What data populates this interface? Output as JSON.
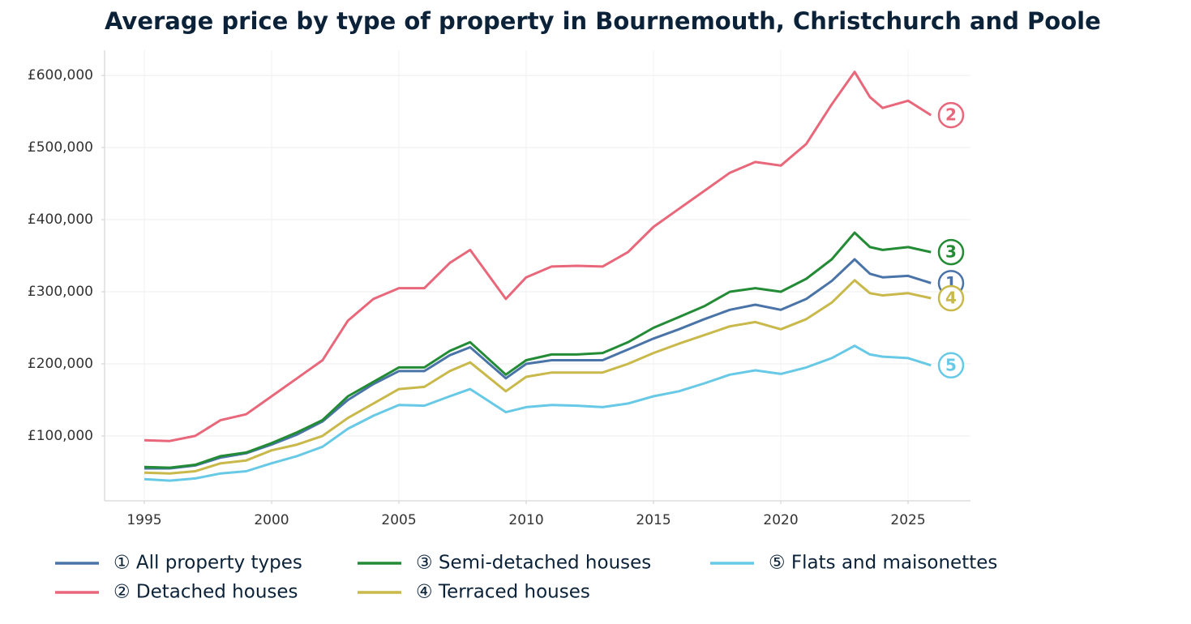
{
  "chart_data": {
    "type": "line",
    "title": "Average price by type of property in Bournemouth, Christchurch and Poole",
    "x": [
      1995,
      1996,
      1997,
      1998,
      1999,
      2000,
      2001,
      2002,
      2003,
      2004,
      2005,
      2006,
      2007,
      2007.8,
      2009.2,
      2010,
      2011,
      2012,
      2013,
      2014,
      2015,
      2016,
      2017,
      2018,
      2019,
      2020,
      2021,
      2022,
      2022.9,
      2023.5,
      2024,
      2025,
      2025.9
    ],
    "series": [
      {
        "name": "① All property types",
        "label": "1",
        "color": "#4a74a8",
        "values": [
          55000,
          55000,
          59000,
          70000,
          76000,
          88000,
          102000,
          120000,
          150000,
          172000,
          190000,
          190000,
          212000,
          223000,
          180000,
          200000,
          205000,
          205000,
          205000,
          220000,
          235000,
          248000,
          262000,
          275000,
          282000,
          275000,
          290000,
          315000,
          345000,
          325000,
          320000,
          322000,
          312000
        ]
      },
      {
        "name": "② Detached houses",
        "label": "2",
        "color": "#e8677a",
        "values": [
          94000,
          93000,
          100000,
          122000,
          130000,
          155000,
          180000,
          205000,
          260000,
          290000,
          305000,
          305000,
          340000,
          358000,
          290000,
          320000,
          335000,
          336000,
          335000,
          355000,
          390000,
          415000,
          440000,
          465000,
          480000,
          475000,
          505000,
          560000,
          605000,
          570000,
          555000,
          565000,
          545000
        ]
      },
      {
        "name": "③ Semi-detached houses",
        "label": "3",
        "color": "#238b35",
        "values": [
          57000,
          56000,
          60000,
          72000,
          77000,
          90000,
          105000,
          122000,
          155000,
          175000,
          195000,
          195000,
          218000,
          230000,
          185000,
          205000,
          213000,
          213000,
          215000,
          230000,
          250000,
          265000,
          280000,
          300000,
          305000,
          300000,
          318000,
          345000,
          382000,
          362000,
          358000,
          362000,
          355000
        ]
      },
      {
        "name": "④ Terraced houses",
        "label": "4",
        "color": "#c9b84a",
        "values": [
          49000,
          48000,
          51000,
          62000,
          66000,
          80000,
          88000,
          100000,
          125000,
          145000,
          165000,
          168000,
          190000,
          202000,
          162000,
          182000,
          188000,
          188000,
          188000,
          200000,
          215000,
          228000,
          240000,
          252000,
          258000,
          248000,
          262000,
          285000,
          316000,
          298000,
          295000,
          298000,
          291000
        ]
      },
      {
        "name": "⑤ Flats and maisonettes",
        "label": "5",
        "color": "#67c9e6",
        "values": [
          40000,
          38000,
          41000,
          48000,
          51000,
          62000,
          72000,
          85000,
          110000,
          128000,
          143000,
          142000,
          155000,
          165000,
          133000,
          140000,
          143000,
          142000,
          140000,
          145000,
          155000,
          162000,
          173000,
          185000,
          191000,
          186000,
          195000,
          208000,
          225000,
          213000,
          210000,
          208000,
          198000
        ]
      }
    ],
    "xlim": [
      1993.44,
      2027.45
    ],
    "ylim": [
      10000,
      635000
    ],
    "xticks": [
      1995,
      2000,
      2005,
      2010,
      2015,
      2020,
      2025
    ],
    "yticks": [
      {
        "value": 100000,
        "label": "£100,000"
      },
      {
        "value": 200000,
        "label": "£200,000"
      },
      {
        "value": 300000,
        "label": "£300,000"
      },
      {
        "value": 400000,
        "label": "£400,000"
      },
      {
        "value": 500000,
        "label": "£500,000"
      },
      {
        "value": 600000,
        "label": "£600,000"
      }
    ],
    "grid": true,
    "legend": "bottom"
  }
}
